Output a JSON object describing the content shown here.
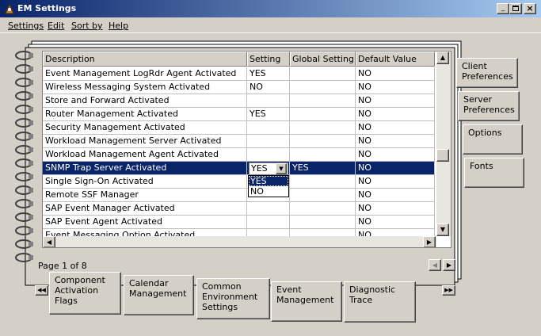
{
  "window": {
    "title": "EM Settings"
  },
  "menu": [
    "Settings",
    "Edit",
    "Sort by",
    "Help"
  ],
  "table": {
    "columns": [
      "Description",
      "Setting",
      "Global Setting",
      "Default Value"
    ],
    "rows": [
      {
        "description": "Event Management LogRdr Agent Activated",
        "setting": "YES",
        "default": "NO"
      },
      {
        "description": "Wireless Messaging System Activated",
        "setting": "NO",
        "default": "NO"
      },
      {
        "description": "Store and Forward Activated",
        "default": "NO"
      },
      {
        "description": "Router Management Activated",
        "setting": "YES",
        "default": "NO"
      },
      {
        "description": "Security Management Activated",
        "default": "NO"
      },
      {
        "description": "Workload Management Server Activated",
        "default": "NO"
      },
      {
        "description": "Workload Management Agent Activated",
        "default": "NO"
      },
      {
        "description": "SNMP Trap Server Activated",
        "setting": "YES",
        "global": "YES",
        "default": "NO",
        "selected": true
      },
      {
        "description": "Single Sign-On Activated",
        "default": "NO"
      },
      {
        "description": "Remote SSF Manager",
        "default": "NO"
      },
      {
        "description": "SAP Event Manager Activated",
        "default": "NO"
      },
      {
        "description": "SAP Event Agent Activated",
        "default": "NO"
      },
      {
        "description": "Event Messaging Option Activated",
        "default": "NO"
      }
    ],
    "dropdown_options": [
      "YES",
      "NO"
    ]
  },
  "page_label": "Page 1 of 8",
  "right_tabs": [
    "Client Preferences",
    "Server Preferences",
    "Options",
    "Fonts"
  ],
  "bottom_tabs": [
    "Component Activation Flags",
    "Calendar Management",
    "Common Environment Settings",
    "Event Management",
    "Diagnostic Trace"
  ]
}
